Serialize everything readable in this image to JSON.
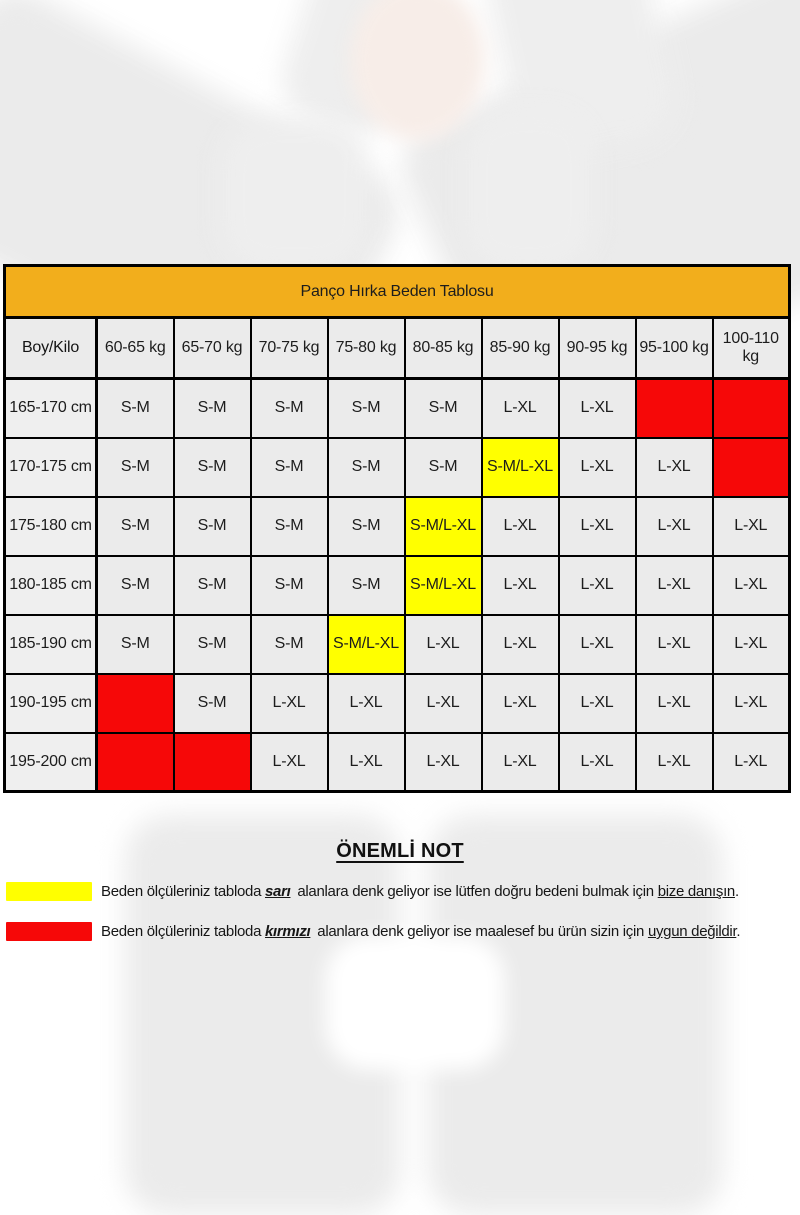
{
  "chart_data": {
    "type": "table",
    "title": "Panço Hırka Beden Tablosu",
    "corner_label": "Boy/Kilo",
    "columns": [
      "60-65 kg",
      "65-70 kg",
      "70-75 kg",
      "75-80 kg",
      "80-85 kg",
      "85-90 kg",
      "90-95 kg",
      "95-100 kg",
      "100-110 kg"
    ],
    "rows": [
      {
        "height_label": "165-170 cm",
        "cells": [
          {
            "label": "S-M",
            "state": "normal"
          },
          {
            "label": "S-M",
            "state": "normal"
          },
          {
            "label": "S-M",
            "state": "normal"
          },
          {
            "label": "S-M",
            "state": "normal"
          },
          {
            "label": "S-M",
            "state": "normal"
          },
          {
            "label": "L-XL",
            "state": "normal"
          },
          {
            "label": "L-XL",
            "state": "normal"
          },
          {
            "label": "",
            "state": "red"
          },
          {
            "label": "",
            "state": "red"
          }
        ]
      },
      {
        "height_label": "170-175 cm",
        "cells": [
          {
            "label": "S-M",
            "state": "normal"
          },
          {
            "label": "S-M",
            "state": "normal"
          },
          {
            "label": "S-M",
            "state": "normal"
          },
          {
            "label": "S-M",
            "state": "normal"
          },
          {
            "label": "S-M",
            "state": "normal"
          },
          {
            "label": "S-M/L-XL",
            "state": "yellow"
          },
          {
            "label": "L-XL",
            "state": "normal"
          },
          {
            "label": "L-XL",
            "state": "normal"
          },
          {
            "label": "",
            "state": "red"
          }
        ]
      },
      {
        "height_label": "175-180 cm",
        "cells": [
          {
            "label": "S-M",
            "state": "normal"
          },
          {
            "label": "S-M",
            "state": "normal"
          },
          {
            "label": "S-M",
            "state": "normal"
          },
          {
            "label": "S-M",
            "state": "normal"
          },
          {
            "label": "S-M/L-XL",
            "state": "yellow"
          },
          {
            "label": "L-XL",
            "state": "normal"
          },
          {
            "label": "L-XL",
            "state": "normal"
          },
          {
            "label": "L-XL",
            "state": "normal"
          },
          {
            "label": "L-XL",
            "state": "normal"
          }
        ]
      },
      {
        "height_label": "180-185 cm",
        "cells": [
          {
            "label": "S-M",
            "state": "normal"
          },
          {
            "label": "S-M",
            "state": "normal"
          },
          {
            "label": "S-M",
            "state": "normal"
          },
          {
            "label": "S-M",
            "state": "normal"
          },
          {
            "label": "S-M/L-XL",
            "state": "yellow"
          },
          {
            "label": "L-XL",
            "state": "normal"
          },
          {
            "label": "L-XL",
            "state": "normal"
          },
          {
            "label": "L-XL",
            "state": "normal"
          },
          {
            "label": "L-XL",
            "state": "normal"
          }
        ]
      },
      {
        "height_label": "185-190 cm",
        "cells": [
          {
            "label": "S-M",
            "state": "normal"
          },
          {
            "label": "S-M",
            "state": "normal"
          },
          {
            "label": "S-M",
            "state": "normal"
          },
          {
            "label": "S-M/L-XL",
            "state": "yellow"
          },
          {
            "label": "L-XL",
            "state": "normal"
          },
          {
            "label": "L-XL",
            "state": "normal"
          },
          {
            "label": "L-XL",
            "state": "normal"
          },
          {
            "label": "L-XL",
            "state": "normal"
          },
          {
            "label": "L-XL",
            "state": "normal"
          }
        ]
      },
      {
        "height_label": "190-195 cm",
        "cells": [
          {
            "label": "",
            "state": "red"
          },
          {
            "label": "S-M",
            "state": "normal"
          },
          {
            "label": "L-XL",
            "state": "normal"
          },
          {
            "label": "L-XL",
            "state": "normal"
          },
          {
            "label": "L-XL",
            "state": "normal"
          },
          {
            "label": "L-XL",
            "state": "normal"
          },
          {
            "label": "L-XL",
            "state": "normal"
          },
          {
            "label": "L-XL",
            "state": "normal"
          },
          {
            "label": "L-XL",
            "state": "normal"
          }
        ]
      },
      {
        "height_label": "195-200 cm",
        "cells": [
          {
            "label": "",
            "state": "red"
          },
          {
            "label": "",
            "state": "red"
          },
          {
            "label": "L-XL",
            "state": "normal"
          },
          {
            "label": "L-XL",
            "state": "normal"
          },
          {
            "label": "L-XL",
            "state": "normal"
          },
          {
            "label": "L-XL",
            "state": "normal"
          },
          {
            "label": "L-XL",
            "state": "normal"
          },
          {
            "label": "L-XL",
            "state": "normal"
          },
          {
            "label": "L-XL",
            "state": "normal"
          }
        ]
      }
    ]
  },
  "note": {
    "heading": "ÖNEMLİ NOT",
    "items": [
      {
        "swatch": "yellow",
        "prefix": "Beden ölçüleriniz tabloda ",
        "keyword": "sarı",
        "middle": " alanlara denk geliyor ise lütfen doğru bedeni bulmak için ",
        "emphasis": "bize danışın",
        "suffix": "."
      },
      {
        "swatch": "red",
        "prefix": "Beden ölçüleriniz tabloda ",
        "keyword": "kırmızı",
        "middle": " alanlara denk geliyor ise maalesef bu ürün sizin için ",
        "emphasis": "uygun değildir",
        "suffix": "."
      }
    ]
  },
  "colors": {
    "table_header_orange": "#F2AE1C",
    "corner_green": "#8DC94E",
    "highlight_yellow": "#FFFF00",
    "unavailable_red": "#F60808"
  }
}
